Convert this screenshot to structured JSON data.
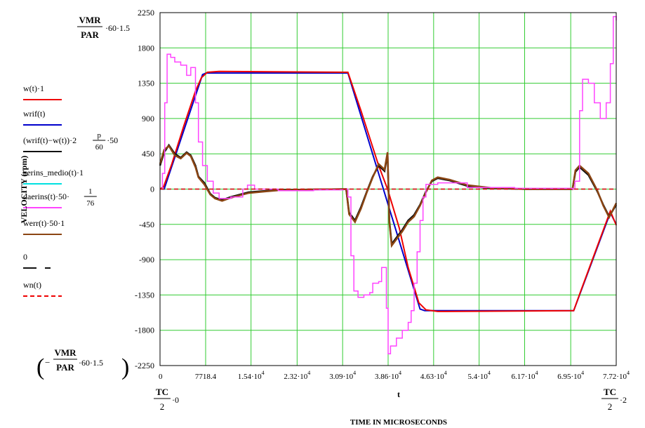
{
  "chart_data": {
    "type": "line",
    "title": "",
    "xlabel": "TIME IN MICROSECONDS",
    "xlabel_var": "t",
    "ylabel": "VELOCITY (rpm)",
    "xlim": [
      0,
      77200
    ],
    "ylim": [
      -2250,
      2250
    ],
    "grid": true,
    "legend_position": "left",
    "x_ticks": [
      0,
      7718.4,
      15400,
      23200,
      30900,
      38600,
      46300,
      54000,
      61700,
      69500,
      77200
    ],
    "x_tick_labels": [
      {
        "base": "0",
        "exp": ""
      },
      {
        "base": "7718.4",
        "exp": ""
      },
      {
        "base": "1.54·10",
        "exp": "4"
      },
      {
        "base": "2.32·10",
        "exp": "4"
      },
      {
        "base": "3.09·10",
        "exp": "4"
      },
      {
        "base": "3.86·10",
        "exp": "4"
      },
      {
        "base": "4.63·10",
        "exp": "4"
      },
      {
        "base": "5.4·10",
        "exp": "4"
      },
      {
        "base": "6.17·10",
        "exp": "4"
      },
      {
        "base": "6.95·10",
        "exp": "4"
      },
      {
        "base": "7.72·10",
        "exp": "4"
      }
    ],
    "y_ticks": [
      2250,
      1800,
      1350,
      900,
      450,
      0,
      -450,
      -900,
      -1350,
      -1800,
      -2250
    ],
    "y_tick_labels": [
      "2250",
      "1800",
      "1350",
      "900",
      "450",
      "0",
      "-450",
      "-900",
      "-1350",
      "-1800",
      "-2250"
    ],
    "y_max_expr": {
      "num": "VMR",
      "den": "PAR",
      "rest": "·60·1.5"
    },
    "y_min_expr": {
      "num": "VMR",
      "den": "PAR",
      "rest": "·60·1.5",
      "sign": "−"
    },
    "x_min_expr": {
      "num": "TC",
      "den": "2",
      "rest": "·0"
    },
    "x_max_expr": {
      "num": "TC",
      "den": "2",
      "rest": "·2"
    },
    "legend": [
      {
        "label": "w(t)·1",
        "color": "#ee0000"
      },
      {
        "label": "wrif(t)",
        "color": "#0000cc"
      },
      {
        "label": "(wrif(t)−w(t))·2",
        "frac_num": "p",
        "frac_den": "60",
        "suffix": "·50",
        "color": "#111111"
      },
      {
        "label": "aerins_medio(t)·1",
        "color": "#00e0e0"
      },
      {
        "label": "daerins(t)·50·",
        "frac_num": "1",
        "frac_den": "76",
        "color": "#ff44ff"
      },
      {
        "label": "werr(t)·50·1",
        "color": "#8b4513"
      },
      {
        "label": "0",
        "color": "#111111"
      },
      {
        "label": "wn(t)",
        "color": "#ee0000"
      }
    ],
    "series": [
      {
        "name": "wrif(t)",
        "color": "#0000cc",
        "points": [
          [
            0,
            0
          ],
          [
            700,
            0
          ],
          [
            7200,
            1460
          ],
          [
            7800,
            1480
          ],
          [
            31800,
            1480
          ],
          [
            44000,
            -1530
          ],
          [
            44800,
            -1550
          ],
          [
            70000,
            -1550
          ],
          [
            76200,
            -300
          ],
          [
            77200,
            -450
          ]
        ]
      },
      {
        "name": "w(t)·1",
        "color": "#ee0000",
        "points": [
          [
            0,
            0
          ],
          [
            600,
            30
          ],
          [
            2000,
            320
          ],
          [
            4000,
            800
          ],
          [
            6000,
            1250
          ],
          [
            7000,
            1420
          ],
          [
            8000,
            1490
          ],
          [
            10000,
            1500
          ],
          [
            31800,
            1490
          ],
          [
            34000,
            1000
          ],
          [
            37000,
            300
          ],
          [
            38500,
            0
          ],
          [
            40500,
            -500
          ],
          [
            42000,
            -1000
          ],
          [
            43800,
            -1450
          ],
          [
            45000,
            -1540
          ],
          [
            47000,
            -1560
          ],
          [
            70000,
            -1550
          ],
          [
            71000,
            -1340
          ],
          [
            76200,
            -280
          ],
          [
            77200,
            -460
          ]
        ]
      },
      {
        "name": "(wrif(t)−w(t))·2·p/60·50",
        "color": "#111111",
        "points": [
          [
            0,
            300
          ],
          [
            700,
            470
          ],
          [
            1500,
            560
          ],
          [
            2500,
            450
          ],
          [
            3500,
            400
          ],
          [
            4500,
            470
          ],
          [
            5200,
            430
          ],
          [
            6000,
            300
          ],
          [
            6500,
            160
          ],
          [
            7500,
            80
          ],
          [
            8500,
            -60
          ],
          [
            9300,
            -110
          ],
          [
            10500,
            -140
          ],
          [
            12000,
            -100
          ],
          [
            15000,
            -40
          ],
          [
            20000,
            -10
          ],
          [
            25000,
            -5
          ],
          [
            31500,
            0
          ],
          [
            32000,
            -300
          ],
          [
            33000,
            -400
          ],
          [
            34000,
            -230
          ],
          [
            35000,
            -30
          ],
          [
            36000,
            160
          ],
          [
            37000,
            300
          ],
          [
            38000,
            230
          ],
          [
            38500,
            450
          ],
          [
            38800,
            -400
          ],
          [
            39200,
            -700
          ],
          [
            40000,
            -620
          ],
          [
            41000,
            -520
          ],
          [
            42000,
            -400
          ],
          [
            43000,
            -330
          ],
          [
            44000,
            -200
          ],
          [
            45000,
            -30
          ],
          [
            46000,
            100
          ],
          [
            47000,
            140
          ],
          [
            49000,
            110
          ],
          [
            52000,
            40
          ],
          [
            56000,
            10
          ],
          [
            62000,
            0
          ],
          [
            69800,
            0
          ],
          [
            70300,
            220
          ],
          [
            71000,
            280
          ],
          [
            72500,
            180
          ],
          [
            74000,
            -30
          ],
          [
            75000,
            -200
          ],
          [
            76000,
            -350
          ],
          [
            77200,
            -200
          ]
        ]
      },
      {
        "name": "werr(t)·50·1",
        "color": "#8b4513",
        "points": [
          [
            0,
            320
          ],
          [
            700,
            500
          ],
          [
            1500,
            550
          ],
          [
            2500,
            430
          ],
          [
            3500,
            390
          ],
          [
            4500,
            460
          ],
          [
            5200,
            420
          ],
          [
            6000,
            280
          ],
          [
            6500,
            150
          ],
          [
            7500,
            60
          ],
          [
            8500,
            -70
          ],
          [
            9300,
            -120
          ],
          [
            10500,
            -150
          ],
          [
            12000,
            -110
          ],
          [
            15000,
            -50
          ],
          [
            20000,
            -15
          ],
          [
            25000,
            -5
          ],
          [
            31500,
            0
          ],
          [
            32000,
            -320
          ],
          [
            33000,
            -420
          ],
          [
            34000,
            -250
          ],
          [
            35000,
            -40
          ],
          [
            36000,
            150
          ],
          [
            37000,
            320
          ],
          [
            38000,
            250
          ],
          [
            38500,
            470
          ],
          [
            38800,
            -420
          ],
          [
            39200,
            -720
          ],
          [
            40000,
            -640
          ],
          [
            41000,
            -540
          ],
          [
            42000,
            -420
          ],
          [
            43000,
            -350
          ],
          [
            44000,
            -210
          ],
          [
            45000,
            -40
          ],
          [
            46000,
            110
          ],
          [
            47000,
            150
          ],
          [
            49000,
            120
          ],
          [
            52000,
            50
          ],
          [
            56000,
            15
          ],
          [
            62000,
            0
          ],
          [
            69800,
            0
          ],
          [
            70300,
            240
          ],
          [
            71000,
            300
          ],
          [
            72500,
            200
          ],
          [
            74000,
            -20
          ],
          [
            75000,
            -210
          ],
          [
            76000,
            -360
          ],
          [
            77200,
            -180
          ]
        ]
      },
      {
        "name": "daerins(t)·50·1/76",
        "color": "#ff44ff",
        "points": [
          [
            0,
            0
          ],
          [
            400,
            200
          ],
          [
            800,
            1100
          ],
          [
            1200,
            1720
          ],
          [
            1800,
            1680
          ],
          [
            2500,
            1620
          ],
          [
            3500,
            1580
          ],
          [
            4500,
            1450
          ],
          [
            5200,
            1550
          ],
          [
            6000,
            1100
          ],
          [
            6500,
            600
          ],
          [
            7200,
            300
          ],
          [
            8000,
            100
          ],
          [
            9000,
            -50
          ],
          [
            10000,
            -120
          ],
          [
            12000,
            -100
          ],
          [
            14000,
            0
          ],
          [
            14800,
            50
          ],
          [
            16000,
            0
          ],
          [
            20000,
            -20
          ],
          [
            26000,
            -10
          ],
          [
            31000,
            0
          ],
          [
            31800,
            -100
          ],
          [
            32300,
            -850
          ],
          [
            32800,
            -1300
          ],
          [
            33500,
            -1380
          ],
          [
            34500,
            -1350
          ],
          [
            35500,
            -1320
          ],
          [
            36000,
            -1200
          ],
          [
            37000,
            -1180
          ],
          [
            37500,
            -1000
          ],
          [
            38300,
            -1520
          ],
          [
            38600,
            -2100
          ],
          [
            39000,
            -2000
          ],
          [
            40000,
            -1900
          ],
          [
            41000,
            -1800
          ],
          [
            42000,
            -1700
          ],
          [
            42500,
            -1550
          ],
          [
            43000,
            -1200
          ],
          [
            43500,
            -800
          ],
          [
            44000,
            -400
          ],
          [
            44500,
            -100
          ],
          [
            45000,
            60
          ],
          [
            47000,
            80
          ],
          [
            52000,
            20
          ],
          [
            60000,
            10
          ],
          [
            69800,
            0
          ],
          [
            70200,
            100
          ],
          [
            71000,
            1000
          ],
          [
            71500,
            1400
          ],
          [
            72500,
            1350
          ],
          [
            73500,
            1100
          ],
          [
            74500,
            900
          ],
          [
            75500,
            1100
          ],
          [
            76200,
            1600
          ],
          [
            76700,
            2200
          ],
          [
            77200,
            2150
          ]
        ]
      },
      {
        "name": "aerins_medio(t)·1",
        "color": "#00e0e0",
        "points": [
          [
            0,
            0
          ],
          [
            77200,
            0
          ]
        ],
        "dash": "6,4"
      },
      {
        "name": "wn(t)",
        "color": "#ee0000",
        "points": [
          [
            0,
            0
          ],
          [
            77200,
            0
          ]
        ],
        "dash": "6,4"
      }
    ]
  }
}
